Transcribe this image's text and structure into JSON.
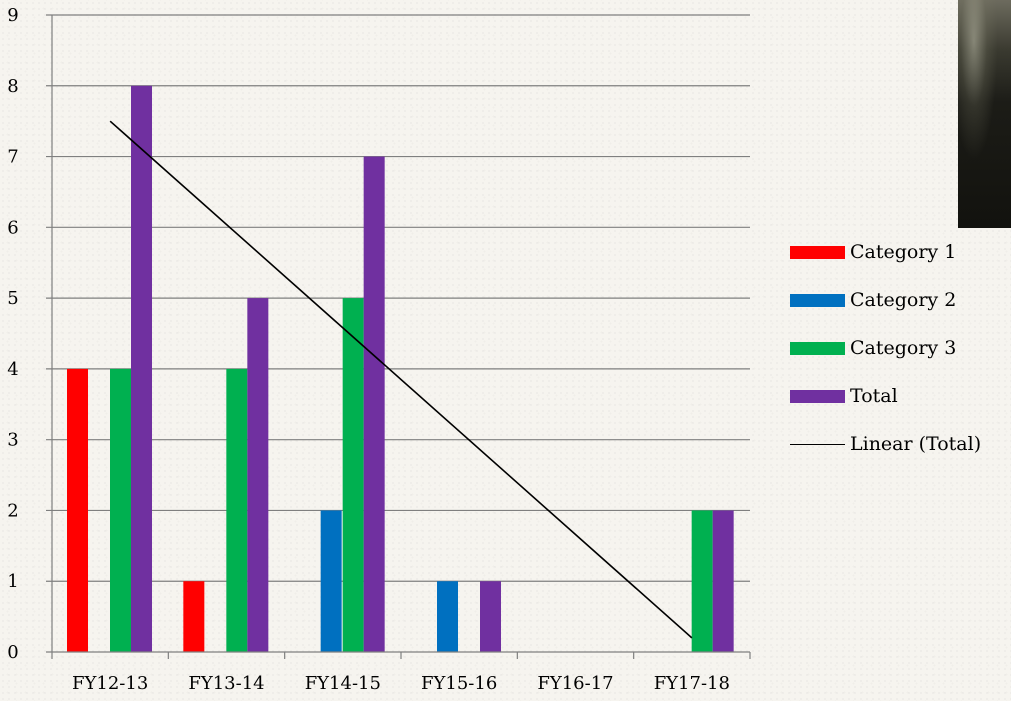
{
  "chart_data": {
    "type": "bar",
    "categories": [
      "FY12-13",
      "FY13-14",
      "FY14-15",
      "FY15-16",
      "FY16-17",
      "FY17-18"
    ],
    "series": [
      {
        "name": "Category 1",
        "color": "#ff0000",
        "values": [
          4,
          1,
          0,
          0,
          0,
          0
        ]
      },
      {
        "name": "Category 2",
        "color": "#0070c0",
        "values": [
          0,
          0,
          2,
          1,
          0,
          0
        ]
      },
      {
        "name": "Category 3",
        "color": "#00b050",
        "values": [
          4,
          4,
          5,
          0,
          0,
          2
        ]
      },
      {
        "name": "Total",
        "color": "#7030a0",
        "values": [
          8,
          5,
          7,
          1,
          0,
          2
        ]
      }
    ],
    "trendline": {
      "name": "Linear (Total)",
      "type": "linear",
      "of_series": "Total",
      "color": "#000000",
      "start_value": 7.5,
      "end_value": 0.2
    },
    "title": "",
    "xlabel": "",
    "ylabel": "",
    "ylim": [
      0,
      9
    ],
    "yticks": [
      0,
      1,
      2,
      3,
      4,
      5,
      6,
      7,
      8,
      9
    ],
    "grid": true,
    "legend_position": "right"
  },
  "legend": {
    "items": [
      {
        "label": "Category 1",
        "color": "#ff0000",
        "kind": "bar"
      },
      {
        "label": "Category 2",
        "color": "#0070c0",
        "kind": "bar"
      },
      {
        "label": "Category 3",
        "color": "#00b050",
        "kind": "bar"
      },
      {
        "label": "Total",
        "color": "#7030a0",
        "kind": "bar"
      },
      {
        "label": "Linear (Total)",
        "color": "#000000",
        "kind": "line"
      }
    ]
  },
  "photo": {
    "icon": "night-road-photo"
  }
}
